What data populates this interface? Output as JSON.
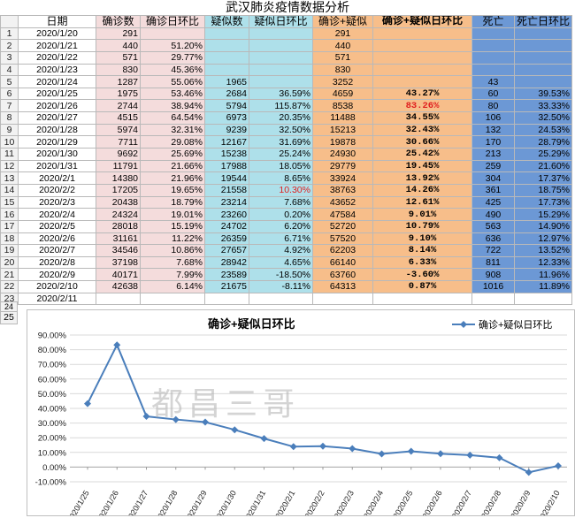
{
  "sheet": {
    "title": "武汉肺炎疫情数据分析",
    "headers": [
      "日期",
      "确诊数",
      "确诊日环比",
      "疑似数",
      "疑似日环比",
      "确诊+疑似",
      "确诊+疑似日环比",
      "死亡",
      "死亡日环比"
    ],
    "rows": [
      {
        "n": "1",
        "date": "2020/1/20",
        "conf": "291",
        "conf_r": "",
        "sus": "",
        "sus_r": "",
        "total": "291",
        "total_r": "",
        "death": "",
        "death_r": ""
      },
      {
        "n": "2",
        "date": "2020/1/21",
        "conf": "440",
        "conf_r": "51.20%",
        "sus": "",
        "sus_r": "",
        "total": "440",
        "total_r": "",
        "death": "",
        "death_r": ""
      },
      {
        "n": "3",
        "date": "2020/1/22",
        "conf": "571",
        "conf_r": "29.77%",
        "sus": "",
        "sus_r": "",
        "total": "571",
        "total_r": "",
        "death": "",
        "death_r": ""
      },
      {
        "n": "4",
        "date": "2020/1/23",
        "conf": "830",
        "conf_r": "45.36%",
        "sus": "",
        "sus_r": "",
        "total": "830",
        "total_r": "",
        "death": "",
        "death_r": ""
      },
      {
        "n": "5",
        "date": "2020/1/24",
        "conf": "1287",
        "conf_r": "55.06%",
        "sus": "1965",
        "sus_r": "",
        "total": "3252",
        "total_r": "",
        "death": "43",
        "death_r": ""
      },
      {
        "n": "6",
        "date": "2020/1/25",
        "conf": "1975",
        "conf_r": "53.46%",
        "sus": "2684",
        "sus_r": "36.59%",
        "total": "4659",
        "total_r": "43.27%",
        "death": "60",
        "death_r": "39.53%"
      },
      {
        "n": "7",
        "date": "2020/1/26",
        "conf": "2744",
        "conf_r": "38.94%",
        "sus": "5794",
        "sus_r": "115.87%",
        "total": "8538",
        "total_r": "83.26%",
        "death": "80",
        "death_r": "33.33%"
      },
      {
        "n": "8",
        "date": "2020/1/27",
        "conf": "4515",
        "conf_r": "64.54%",
        "sus": "6973",
        "sus_r": "20.35%",
        "total": "11488",
        "total_r": "34.55%",
        "death": "106",
        "death_r": "32.50%"
      },
      {
        "n": "9",
        "date": "2020/1/28",
        "conf": "5974",
        "conf_r": "32.31%",
        "sus": "9239",
        "sus_r": "32.50%",
        "total": "15213",
        "total_r": "32.43%",
        "death": "132",
        "death_r": "24.53%"
      },
      {
        "n": "10",
        "date": "2020/1/29",
        "conf": "7711",
        "conf_r": "29.08%",
        "sus": "12167",
        "sus_r": "31.69%",
        "total": "19878",
        "total_r": "30.66%",
        "death": "170",
        "death_r": "28.79%"
      },
      {
        "n": "11",
        "date": "2020/1/30",
        "conf": "9692",
        "conf_r": "25.69%",
        "sus": "15238",
        "sus_r": "25.24%",
        "total": "24930",
        "total_r": "25.42%",
        "death": "213",
        "death_r": "25.29%"
      },
      {
        "n": "12",
        "date": "2020/1/31",
        "conf": "11791",
        "conf_r": "21.66%",
        "sus": "17988",
        "sus_r": "18.05%",
        "total": "29779",
        "total_r": "19.45%",
        "death": "259",
        "death_r": "21.60%"
      },
      {
        "n": "13",
        "date": "2020/2/1",
        "conf": "14380",
        "conf_r": "21.96%",
        "sus": "19544",
        "sus_r": "8.65%",
        "total": "33924",
        "total_r": "13.92%",
        "death": "304",
        "death_r": "17.37%"
      },
      {
        "n": "14",
        "date": "2020/2/2",
        "conf": "17205",
        "conf_r": "19.65%",
        "sus": "21558",
        "sus_r": "10.30%",
        "total": "38763",
        "total_r": "14.26%",
        "death": "361",
        "death_r": "18.75%"
      },
      {
        "n": "15",
        "date": "2020/2/3",
        "conf": "20438",
        "conf_r": "18.79%",
        "sus": "23214",
        "sus_r": "7.68%",
        "total": "43652",
        "total_r": "12.61%",
        "death": "425",
        "death_r": "17.73%"
      },
      {
        "n": "16",
        "date": "2020/2/4",
        "conf": "24324",
        "conf_r": "19.01%",
        "sus": "23260",
        "sus_r": "0.20%",
        "total": "47584",
        "total_r": "9.01%",
        "death": "490",
        "death_r": "15.29%"
      },
      {
        "n": "17",
        "date": "2020/2/5",
        "conf": "28018",
        "conf_r": "15.19%",
        "sus": "24702",
        "sus_r": "6.20%",
        "total": "52720",
        "total_r": "10.79%",
        "death": "563",
        "death_r": "14.90%"
      },
      {
        "n": "18",
        "date": "2020/2/6",
        "conf": "31161",
        "conf_r": "11.22%",
        "sus": "26359",
        "sus_r": "6.71%",
        "total": "57520",
        "total_r": "9.10%",
        "death": "636",
        "death_r": "12.97%"
      },
      {
        "n": "19",
        "date": "2020/2/7",
        "conf": "34546",
        "conf_r": "10.86%",
        "sus": "27657",
        "sus_r": "4.92%",
        "total": "62203",
        "total_r": "8.14%",
        "death": "722",
        "death_r": "13.52%"
      },
      {
        "n": "20",
        "date": "2020/2/8",
        "conf": "37198",
        "conf_r": "7.68%",
        "sus": "28942",
        "sus_r": "4.65%",
        "total": "66140",
        "total_r": "6.33%",
        "death": "811",
        "death_r": "12.33%"
      },
      {
        "n": "21",
        "date": "2020/2/9",
        "conf": "40171",
        "conf_r": "7.99%",
        "sus": "23589",
        "sus_r": "-18.50%",
        "total": "63760",
        "total_r": "-3.60%",
        "death": "908",
        "death_r": "11.96%"
      },
      {
        "n": "22",
        "date": "2020/2/10",
        "conf": "42638",
        "conf_r": "6.14%",
        "sus": "21675",
        "sus_r": "-8.11%",
        "total": "64313",
        "total_r": "0.87%",
        "death": "1016",
        "death_r": "11.89%"
      },
      {
        "n": "23",
        "date": "2020/2/11",
        "conf": "",
        "conf_r": "",
        "sus": "",
        "sus_r": "",
        "total": "",
        "total_r": "",
        "death": "",
        "death_r": ""
      }
    ],
    "extra_rows": [
      "24",
      "25"
    ]
  },
  "colors": {
    "confirmed_bg": "#f4dcdc",
    "suspected_bg": "#aee0ea",
    "total_bg": "#f7be8a",
    "death_bg": "#6c98d5",
    "highlight_red": "#e02020",
    "line": "#4a7ebb"
  },
  "chart_data": {
    "type": "line",
    "title": "确诊+疑似日环比",
    "legend": "确诊+疑似日环比",
    "legend_position": "top-right",
    "categories": [
      "2020/1/25",
      "2020/1/26",
      "2020/1/27",
      "2020/1/28",
      "2020/1/29",
      "2020/1/30",
      "2020/1/31",
      "2020/2/1",
      "2020/2/2",
      "2020/2/3",
      "2020/2/4",
      "2020/2/5",
      "2020/2/6",
      "2020/2/7",
      "2020/2/8",
      "2020/2/9",
      "2020/2/10"
    ],
    "series": [
      {
        "name": "确诊+疑似日环比",
        "values": [
          43.27,
          83.26,
          34.55,
          32.43,
          30.66,
          25.42,
          19.45,
          13.92,
          14.26,
          12.61,
          9.01,
          10.79,
          9.1,
          8.14,
          6.33,
          -3.6,
          0.87
        ]
      }
    ],
    "ylim": [
      -10,
      90
    ],
    "yticks": [
      "90.00%",
      "80.00%",
      "70.00%",
      "60.00%",
      "50.00%",
      "40.00%",
      "30.00%",
      "20.00%",
      "10.00%",
      "0.00%",
      "-10.00%"
    ],
    "grid": true
  },
  "watermark": "都昌三哥"
}
